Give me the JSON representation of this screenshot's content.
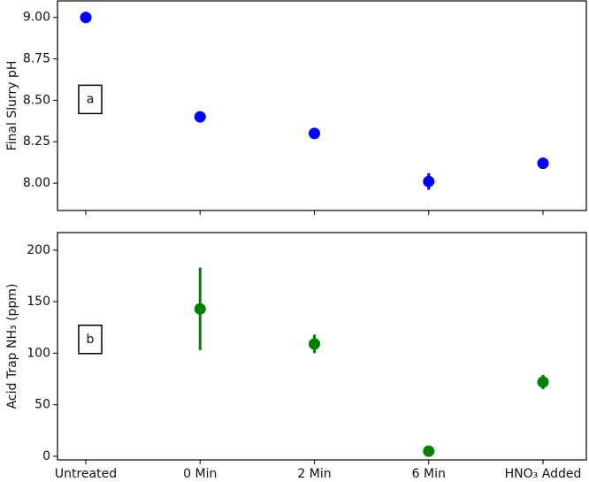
{
  "chart_data": [
    {
      "type": "scatter",
      "annotation": "a",
      "ylabel": "Final Slurry pH",
      "series": [
        {
          "color": "#0000ff",
          "values": [
            9.0,
            8.4,
            8.3,
            8.01,
            8.12
          ],
          "errors": [
            null,
            null,
            null,
            0.05,
            null
          ]
        }
      ],
      "ylim": [
        7.835,
        9.1
      ],
      "yticks": [
        {
          "value": 8,
          "label": "8.00"
        },
        {
          "value": 8.25,
          "label": "8.25"
        },
        {
          "value": 8.5,
          "label": "8.50"
        },
        {
          "value": 8.75,
          "label": "8.75"
        },
        {
          "value": 9,
          "label": "9.00"
        }
      ]
    },
    {
      "type": "scatter",
      "annotation": "b",
      "ylabel": "Acid Trap NH₃ (ppm)",
      "categories": [
        "Untreated",
        "0 Min",
        "2 Min",
        "6 Min",
        "HNO₃ Added"
      ],
      "series": [
        {
          "color": "#008000",
          "values": [
            null,
            143,
            109,
            5,
            72
          ],
          "errors": [
            null,
            40,
            9,
            null,
            7
          ]
        }
      ],
      "ylim": [
        -3.5,
        217
      ],
      "yticks": [
        0,
        50,
        100,
        150,
        200
      ]
    }
  ]
}
